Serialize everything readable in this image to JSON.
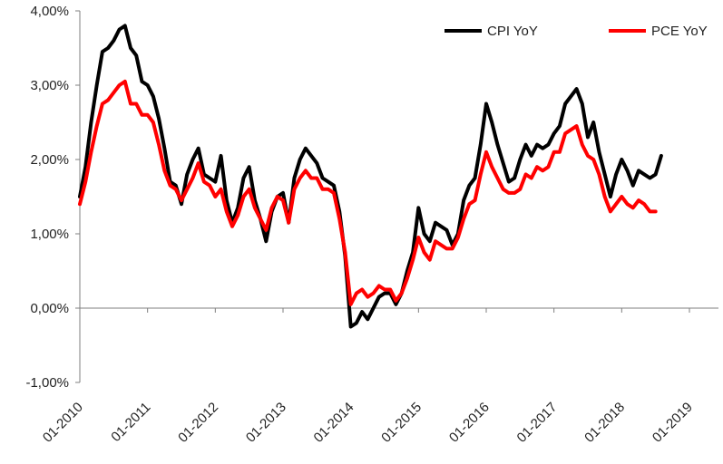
{
  "chart_data": {
    "type": "line",
    "x_tick_labels": [
      "01-2010",
      "01-2011",
      "01-2012",
      "01-2013",
      "01-2014",
      "01-2015",
      "01-2016",
      "01-2017",
      "01-2018",
      "01-2019"
    ],
    "y_tick_labels": [
      "-1,00%",
      "0,00%",
      "1,00%",
      "2,00%",
      "3,00%",
      "4,00%"
    ],
    "y_ticks": [
      -1,
      0,
      1,
      2,
      3,
      4
    ],
    "ylim": [
      -1,
      4
    ],
    "x_start": "01-2010",
    "x_end": "01-2019",
    "grid": false,
    "legend_position": "top-right",
    "series": [
      {
        "name": "CPI YoY",
        "color": "#000000",
        "start": "01-2010",
        "values": [
          1.5,
          1.9,
          2.5,
          3.0,
          3.45,
          3.5,
          3.6,
          3.75,
          3.8,
          3.5,
          3.4,
          3.05,
          3.0,
          2.85,
          2.55,
          2.15,
          1.7,
          1.65,
          1.4,
          1.8,
          2.0,
          2.15,
          1.8,
          1.75,
          1.7,
          2.05,
          1.45,
          1.15,
          1.35,
          1.75,
          1.9,
          1.45,
          1.2,
          0.9,
          1.3,
          1.5,
          1.55,
          1.15,
          1.75,
          2.0,
          2.15,
          2.05,
          1.95,
          1.75,
          1.7,
          1.65,
          1.3,
          0.7,
          -0.25,
          -0.2,
          -0.05,
          -0.15,
          0.0,
          0.15,
          0.2,
          0.2,
          0.05,
          0.2,
          0.5,
          0.75,
          1.35,
          1.0,
          0.9,
          1.15,
          1.1,
          1.05,
          0.85,
          1.0,
          1.45,
          1.65,
          1.75,
          2.2,
          2.75,
          2.5,
          2.2,
          1.95,
          1.7,
          1.75,
          2.0,
          2.2,
          2.05,
          2.2,
          2.15,
          2.2,
          2.35,
          2.45,
          2.75,
          2.85,
          2.95,
          2.75,
          2.3,
          2.5,
          2.1,
          1.8,
          1.5,
          1.8,
          2.0,
          1.85,
          1.65,
          1.85,
          1.8,
          1.75,
          1.8,
          2.05
        ]
      },
      {
        "name": "PCE YoY",
        "color": "#ff0000",
        "start": "01-2010",
        "values": [
          1.4,
          1.7,
          2.1,
          2.45,
          2.75,
          2.8,
          2.9,
          3.0,
          3.05,
          2.75,
          2.75,
          2.6,
          2.6,
          2.5,
          2.2,
          1.85,
          1.65,
          1.6,
          1.45,
          1.6,
          1.75,
          1.95,
          1.7,
          1.65,
          1.5,
          1.6,
          1.3,
          1.1,
          1.25,
          1.5,
          1.6,
          1.35,
          1.2,
          1.05,
          1.35,
          1.5,
          1.45,
          1.15,
          1.6,
          1.75,
          1.85,
          1.75,
          1.75,
          1.6,
          1.6,
          1.55,
          1.2,
          0.75,
          0.05,
          0.2,
          0.25,
          0.15,
          0.2,
          0.3,
          0.25,
          0.25,
          0.1,
          0.2,
          0.4,
          0.65,
          0.95,
          0.75,
          0.65,
          0.9,
          0.85,
          0.8,
          0.8,
          0.95,
          1.2,
          1.4,
          1.45,
          1.8,
          2.1,
          1.9,
          1.75,
          1.6,
          1.55,
          1.55,
          1.6,
          1.8,
          1.75,
          1.9,
          1.85,
          1.9,
          2.1,
          2.1,
          2.35,
          2.4,
          2.45,
          2.2,
          2.05,
          2.0,
          1.8,
          1.5,
          1.3,
          1.4,
          1.5,
          1.4,
          1.35,
          1.45,
          1.4,
          1.3,
          1.3
        ]
      }
    ]
  }
}
